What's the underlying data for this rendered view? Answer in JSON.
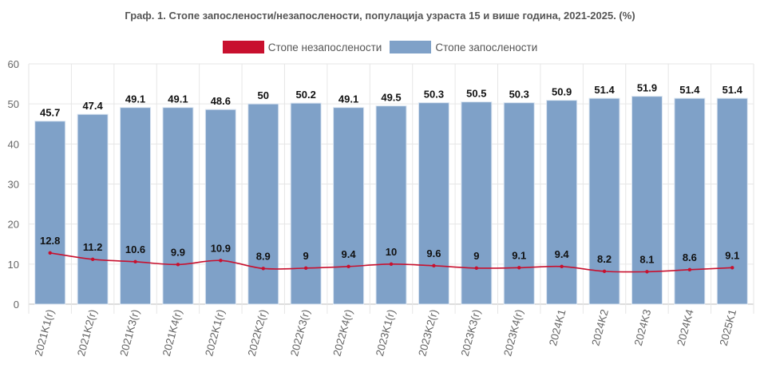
{
  "chart_data": {
    "type": "bar",
    "title": "Граф. 1. Стопе запослености/незапослености, популација узраста 15 и више година, 2021-2025. (%)",
    "categories": [
      "2021K1(r)",
      "2021K2(r)",
      "2021K3(r)",
      "2021K4(r)",
      "2022K1(r)",
      "2022K2(r)",
      "2022K3(r)",
      "2022K4(r)",
      "2023K1(r)",
      "2023K2(r)",
      "2023K3(r)",
      "2023K4(r)",
      "2024K1",
      "2024K2",
      "2024K3",
      "2024K4",
      "2025K1"
    ],
    "series": [
      {
        "name": "Стопе незапослености",
        "type": "line",
        "color": "#c8102e",
        "values": [
          12.8,
          11.2,
          10.6,
          9.9,
          10.9,
          8.9,
          9,
          9.4,
          10,
          9.6,
          9,
          9.1,
          9.4,
          8.2,
          8.1,
          8.6,
          9.1
        ]
      },
      {
        "name": "Стопе запослености",
        "type": "bar",
        "color": "#7fa1c8",
        "values": [
          45.7,
          47.4,
          49.1,
          49.1,
          48.6,
          50,
          50.2,
          49.1,
          49.5,
          50.3,
          50.5,
          50.3,
          50.9,
          51.4,
          51.9,
          51.4,
          51.4
        ]
      }
    ],
    "ylim": [
      0,
      60
    ],
    "yticks": [
      0,
      10,
      20,
      30,
      40,
      50,
      60
    ],
    "grid": true,
    "legend_placement": "top"
  }
}
